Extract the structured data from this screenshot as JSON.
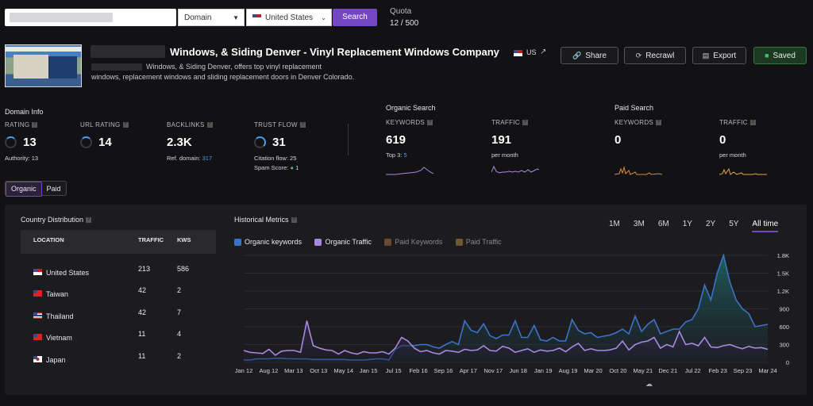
{
  "search": {
    "domain_select": "Domain",
    "country_select": "United States",
    "search_label": "Search",
    "quota_label": "Quota",
    "quota_value": "12 / 500"
  },
  "site": {
    "title": "Windows, & Siding Denver - Vinyl Replacement Windows Company",
    "country_tag": "US",
    "description_line1": "Windows, & Siding Denver, offers top vinyl replacement",
    "description_rest": "windows, replacement windows and sliding replacement doors in Denver Colorado."
  },
  "actions": {
    "share": "Share",
    "recrawl": "Recrawl",
    "export": "Export",
    "saved": "Saved"
  },
  "domain_info": {
    "title": "Domain Info",
    "rating_label": "RATING",
    "rating_value": "13",
    "authority": "Authority: 13",
    "url_rating_label": "URL RATING",
    "url_rating_value": "14",
    "backlinks_label": "BACKLINKS",
    "backlinks_value": "2.3K",
    "ref_domain_label": "Ref. domain:",
    "ref_domain_value": "317",
    "trust_flow_label": "TRUST FLOW",
    "trust_flow_value": "31",
    "citation_flow": "Citation flow: 25",
    "spam_score_label": "Spam Score:",
    "spam_score_value": "1"
  },
  "organic_search": {
    "title": "Organic Search",
    "keywords_label": "KEYWORDS",
    "keywords_value": "619",
    "top3_label": "Top 3:",
    "top3_value": "5",
    "traffic_label": "TRAFFIC",
    "traffic_value": "191",
    "traffic_sub": "per month"
  },
  "paid_search": {
    "title": "Paid Search",
    "keywords_label": "KEYWORDS",
    "keywords_value": "0",
    "traffic_label": "TRAFFIC",
    "traffic_value": "0",
    "traffic_sub": "per month"
  },
  "toggle": {
    "organic": "Organic",
    "paid": "Paid"
  },
  "country_distribution": {
    "title": "Country Distribution",
    "headers": [
      "LOCATION",
      "TRAFFIC",
      "KWS"
    ],
    "rows": [
      {
        "country": "United States",
        "traffic": "213",
        "kws": "586"
      },
      {
        "country": "Taiwan",
        "traffic": "42",
        "kws": "2"
      },
      {
        "country": "Thailand",
        "traffic": "42",
        "kws": "7"
      },
      {
        "country": "Vietnam",
        "traffic": "11",
        "kws": "4"
      },
      {
        "country": "Japan",
        "traffic": "11",
        "kws": "2"
      }
    ]
  },
  "historical": {
    "title": "Historical Metrics",
    "ranges": [
      "1M",
      "3M",
      "6M",
      "1Y",
      "2Y",
      "5Y",
      "All time"
    ],
    "active_range": "All time",
    "legend": [
      {
        "label": "Organic keywords",
        "color": "#3b73c8",
        "checked": true
      },
      {
        "label": "Organic Traffic",
        "color": "#a888e0",
        "checked": true
      },
      {
        "label": "Paid Keywords",
        "color": "#8a5a3a",
        "checked": false
      },
      {
        "label": "Paid Traffic",
        "color": "#8a6a2a",
        "checked": false
      }
    ]
  },
  "chart_data": {
    "type": "area",
    "x_ticks": [
      "Jan 12",
      "Aug 12",
      "Mar 13",
      "Oct 13",
      "May 14",
      "Jan 15",
      "Jul 15",
      "Feb 16",
      "Sep 16",
      "Apr 17",
      "Nov 17",
      "Jun 18",
      "Jan 19",
      "Aug 19",
      "Mar 20",
      "Oct 20",
      "May 21",
      "Dec 21",
      "Jul 22",
      "Feb 23",
      "Sep 23",
      "Mar 24"
    ],
    "y_ticks": [
      "0",
      "300",
      "600",
      "900",
      "1.2K",
      "1.5K",
      "1.8K"
    ],
    "ylim": [
      0,
      1800
    ],
    "series": [
      {
        "name": "Organic keywords",
        "color": "#3b73c8",
        "values": [
          40,
          40,
          60,
          60,
          60,
          70,
          70,
          60,
          60,
          60,
          60,
          50,
          50,
          50,
          50,
          50,
          50,
          40,
          40,
          40,
          50,
          60,
          60,
          40,
          220,
          280,
          280,
          280,
          300,
          300,
          260,
          240,
          300,
          350,
          300,
          700,
          540,
          500,
          650,
          450,
          400,
          460,
          460,
          700,
          420,
          420,
          620,
          380,
          360,
          420,
          360,
          360,
          720,
          540,
          480,
          500,
          420,
          440,
          460,
          500,
          560,
          480,
          780,
          520,
          640,
          720,
          480,
          520,
          560,
          560,
          680,
          720,
          900,
          1300,
          1050,
          1500,
          1800,
          1350,
          1050,
          900,
          820,
          600,
          620,
          640
        ]
      },
      {
        "name": "Organic Traffic",
        "color": "#a888e0",
        "values": [
          200,
          170,
          160,
          150,
          220,
          120,
          190,
          200,
          200,
          170,
          700,
          280,
          240,
          210,
          200,
          140,
          200,
          160,
          140,
          180,
          160,
          160,
          180,
          140,
          240,
          420,
          360,
          240,
          180,
          200,
          160,
          140,
          200,
          190,
          170,
          220,
          200,
          210,
          280,
          200,
          190,
          270,
          240,
          170,
          200,
          230,
          170,
          210,
          190,
          200,
          240,
          180,
          260,
          320,
          200,
          230,
          200,
          200,
          210,
          240,
          360,
          210,
          300,
          340,
          360,
          420,
          240,
          300,
          260,
          520,
          300,
          320,
          280,
          420,
          260,
          250,
          280,
          300,
          260,
          230,
          270,
          240,
          250,
          220
        ]
      }
    ]
  }
}
